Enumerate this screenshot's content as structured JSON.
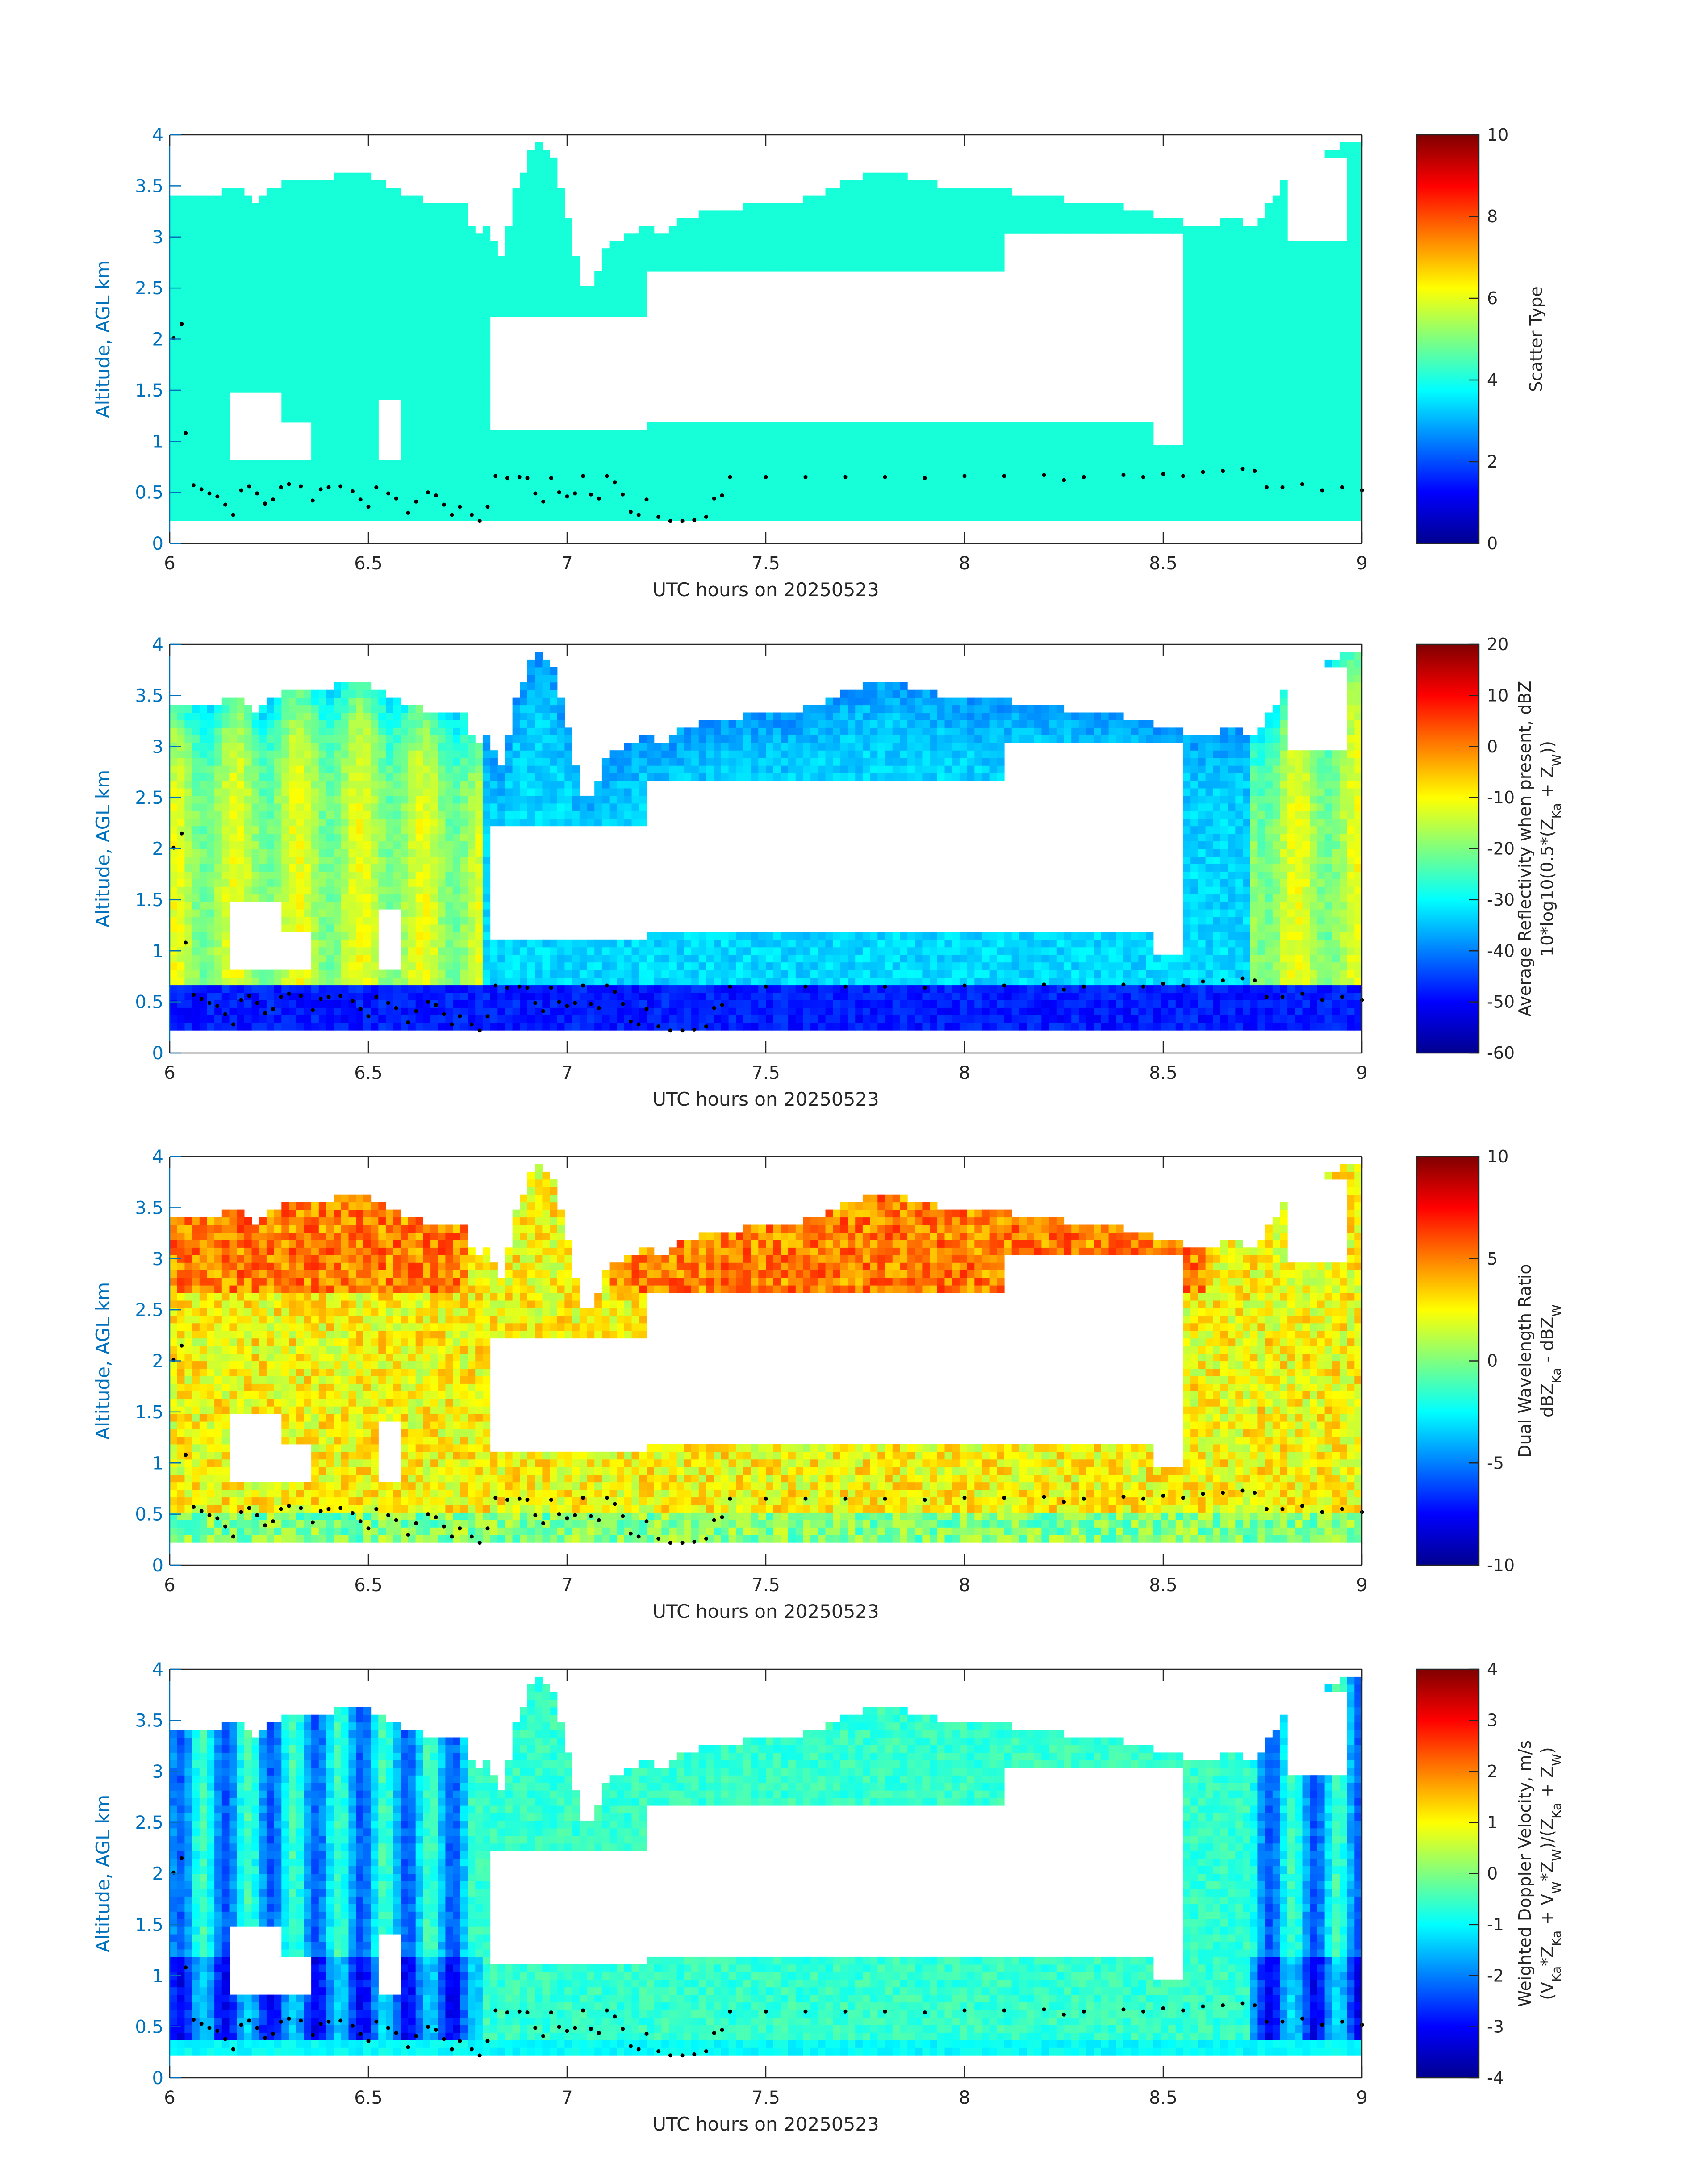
{
  "chart_data": [
    {
      "type": "heatmap",
      "xlabel": "UTC hours on 20250523",
      "ylabel": "Altitude, AGL km",
      "xlim": [
        6,
        9
      ],
      "ylim": [
        0,
        4
      ],
      "xticks": [
        "6",
        "6.5",
        "7",
        "7.5",
        "8",
        "8.5",
        "9"
      ],
      "yticks": [
        "0",
        "0.5",
        "1",
        "1.5",
        "2",
        "2.5",
        "3",
        "3.5",
        "4"
      ],
      "colorbar": {
        "label_lines": [
          "Scatter Type"
        ],
        "range": [
          0,
          10
        ],
        "ticks": [
          "0",
          "2",
          "4",
          "6",
          "8",
          "10"
        ]
      },
      "field": "scatter"
    },
    {
      "type": "heatmap",
      "xlabel": "UTC hours on 20250523",
      "ylabel": "Altitude, AGL km",
      "xlim": [
        6,
        9
      ],
      "ylim": [
        0,
        4
      ],
      "xticks": [
        "6",
        "6.5",
        "7",
        "7.5",
        "8",
        "8.5",
        "9"
      ],
      "yticks": [
        "0",
        "0.5",
        "1",
        "1.5",
        "2",
        "2.5",
        "3",
        "3.5",
        "4"
      ],
      "colorbar": {
        "label_lines": [
          "Average Reflectivity when present, dBZ",
          "10*log10(0.5*(Z_Ka + Z_W))"
        ],
        "range": [
          -60,
          20
        ],
        "ticks": [
          "-60",
          "-50",
          "-40",
          "-30",
          "-20",
          "-10",
          "0",
          "10",
          "20"
        ]
      },
      "field": "reflectivity"
    },
    {
      "type": "heatmap",
      "xlabel": "UTC hours on 20250523",
      "ylabel": "Altitude, AGL km",
      "xlim": [
        6,
        9
      ],
      "ylim": [
        0,
        4
      ],
      "xticks": [
        "6",
        "6.5",
        "7",
        "7.5",
        "8",
        "8.5",
        "9"
      ],
      "yticks": [
        "0",
        "0.5",
        "1",
        "1.5",
        "2",
        "2.5",
        "3",
        "3.5",
        "4"
      ],
      "colorbar": {
        "label_lines": [
          "Dual Wavelength Ratio",
          "dBZ_Ka - dBZ_W"
        ],
        "range": [
          -10,
          10
        ],
        "ticks": [
          "-10",
          "-5",
          "0",
          "5",
          "10"
        ]
      },
      "field": "dwr"
    },
    {
      "type": "heatmap",
      "xlabel": "UTC hours on 20250523",
      "ylabel": "Altitude, AGL km",
      "xlim": [
        6,
        9
      ],
      "ylim": [
        0,
        4
      ],
      "xticks": [
        "6",
        "6.5",
        "7",
        "7.5",
        "8",
        "8.5",
        "9"
      ],
      "yticks": [
        "0",
        "0.5",
        "1",
        "1.5",
        "2",
        "2.5",
        "3",
        "3.5",
        "4"
      ],
      "colorbar": {
        "label_lines": [
          "Weighted Doppler Velocity, m/s",
          "(V_Ka*Z_Ka + V_W*Z_W)/(Z_Ka + Z_W)"
        ],
        "range": [
          -4,
          4
        ],
        "ticks": [
          "-4",
          "-3",
          "-2",
          "-1",
          "0",
          "1",
          "2",
          "3",
          "4"
        ]
      },
      "field": "velocity"
    }
  ],
  "cloud_mask": {
    "time_range": [
      6,
      9
    ],
    "top_km": [
      [
        6.0,
        3.4
      ],
      [
        6.1,
        3.4
      ],
      [
        6.18,
        3.5
      ],
      [
        6.22,
        3.3
      ],
      [
        6.26,
        3.5
      ],
      [
        6.3,
        3.55
      ],
      [
        6.35,
        3.55
      ],
      [
        6.42,
        3.6
      ],
      [
        6.5,
        3.6
      ],
      [
        6.55,
        3.5
      ],
      [
        6.62,
        3.4
      ],
      [
        6.7,
        3.3
      ],
      [
        6.74,
        3.35
      ],
      [
        6.77,
        3.0
      ],
      [
        6.8,
        3.1
      ],
      [
        6.84,
        2.8
      ],
      [
        6.87,
        3.5
      ],
      [
        6.92,
        3.9
      ],
      [
        6.96,
        3.85
      ],
      [
        7.0,
        3.2
      ],
      [
        7.05,
        2.4
      ],
      [
        7.1,
        2.9
      ],
      [
        7.15,
        3.0
      ],
      [
        7.2,
        3.1
      ],
      [
        7.25,
        3.05
      ],
      [
        7.3,
        3.2
      ],
      [
        7.35,
        3.25
      ],
      [
        7.4,
        3.25
      ],
      [
        7.45,
        3.3
      ],
      [
        7.5,
        3.35
      ],
      [
        7.55,
        3.3
      ],
      [
        7.62,
        3.4
      ],
      [
        7.7,
        3.55
      ],
      [
        7.8,
        3.65
      ],
      [
        7.9,
        3.55
      ],
      [
        8.0,
        3.45
      ],
      [
        8.1,
        3.45
      ],
      [
        8.2,
        3.4
      ],
      [
        8.3,
        3.35
      ],
      [
        8.4,
        3.3
      ],
      [
        8.5,
        3.2
      ],
      [
        8.6,
        3.1
      ],
      [
        8.68,
        3.2
      ],
      [
        8.72,
        3.05
      ],
      [
        8.78,
        3.4
      ],
      [
        8.84,
        3.8
      ],
      [
        8.9,
        3.8
      ],
      [
        8.95,
        3.9
      ],
      [
        9.0,
        3.9
      ]
    ],
    "base_km": [
      [
        6.0,
        0.2
      ],
      [
        6.5,
        0.2
      ],
      [
        7.0,
        0.2
      ],
      [
        7.5,
        0.2
      ],
      [
        8.0,
        0.2
      ],
      [
        8.5,
        0.2
      ],
      [
        9.0,
        0.2
      ]
    ],
    "gaps": [
      {
        "t0": 6.8,
        "t1": 7.2,
        "z0": 1.1,
        "z1": 2.2
      },
      {
        "t0": 7.2,
        "t1": 8.55,
        "z0": 1.15,
        "z1": 2.7
      },
      {
        "t0": 8.1,
        "t1": 8.55,
        "z0": 2.7,
        "z1": 3.05
      },
      {
        "t0": 6.15,
        "t1": 6.28,
        "z0": 0.8,
        "z1": 1.5
      },
      {
        "t0": 6.29,
        "t1": 6.36,
        "z0": 0.85,
        "z1": 1.2
      },
      {
        "t0": 6.52,
        "t1": 6.58,
        "z0": 0.8,
        "z1": 1.4
      },
      {
        "t0": 8.48,
        "t1": 8.55,
        "z0": 0.95,
        "z1": 1.4
      },
      {
        "t0": 8.82,
        "t1": 8.96,
        "z0": 3.0,
        "z1": 3.8
      }
    ]
  },
  "boundary_layer_dots": {
    "points": [
      [
        6.01,
        2.01
      ],
      [
        6.03,
        2.15
      ],
      [
        6.04,
        1.08
      ],
      [
        6.06,
        0.57
      ],
      [
        6.08,
        0.53
      ],
      [
        6.1,
        0.49
      ],
      [
        6.12,
        0.46
      ],
      [
        6.14,
        0.38
      ],
      [
        6.16,
        0.28
      ],
      [
        6.18,
        0.52
      ],
      [
        6.2,
        0.56
      ],
      [
        6.22,
        0.49
      ],
      [
        6.24,
        0.39
      ],
      [
        6.26,
        0.43
      ],
      [
        6.28,
        0.55
      ],
      [
        6.3,
        0.58
      ],
      [
        6.33,
        0.56
      ],
      [
        6.36,
        0.42
      ],
      [
        6.38,
        0.53
      ],
      [
        6.4,
        0.55
      ],
      [
        6.43,
        0.56
      ],
      [
        6.46,
        0.51
      ],
      [
        6.48,
        0.43
      ],
      [
        6.5,
        0.36
      ],
      [
        6.52,
        0.55
      ],
      [
        6.55,
        0.49
      ],
      [
        6.57,
        0.44
      ],
      [
        6.6,
        0.3
      ],
      [
        6.62,
        0.41
      ],
      [
        6.65,
        0.5
      ],
      [
        6.67,
        0.47
      ],
      [
        6.69,
        0.38
      ],
      [
        6.71,
        0.28
      ],
      [
        6.73,
        0.36
      ],
      [
        6.76,
        0.28
      ],
      [
        6.78,
        0.22
      ],
      [
        6.8,
        0.36
      ],
      [
        6.82,
        0.66
      ],
      [
        6.85,
        0.64
      ],
      [
        6.88,
        0.65
      ],
      [
        6.9,
        0.64
      ],
      [
        6.92,
        0.49
      ],
      [
        6.94,
        0.41
      ],
      [
        6.96,
        0.64
      ],
      [
        6.98,
        0.5
      ],
      [
        7.0,
        0.46
      ],
      [
        7.02,
        0.49
      ],
      [
        7.04,
        0.66
      ],
      [
        7.06,
        0.48
      ],
      [
        7.08,
        0.44
      ],
      [
        7.1,
        0.66
      ],
      [
        7.12,
        0.6
      ],
      [
        7.14,
        0.48
      ],
      [
        7.16,
        0.31
      ],
      [
        7.18,
        0.28
      ],
      [
        7.2,
        0.43
      ],
      [
        7.23,
        0.26
      ],
      [
        7.26,
        0.22
      ],
      [
        7.29,
        0.22
      ],
      [
        7.32,
        0.23
      ],
      [
        7.35,
        0.26
      ],
      [
        7.37,
        0.44
      ],
      [
        7.39,
        0.47
      ],
      [
        7.41,
        0.65
      ],
      [
        7.5,
        0.65
      ],
      [
        7.6,
        0.65
      ],
      [
        7.7,
        0.65
      ],
      [
        7.8,
        0.65
      ],
      [
        7.9,
        0.64
      ],
      [
        8.0,
        0.66
      ],
      [
        8.1,
        0.66
      ],
      [
        8.2,
        0.67
      ],
      [
        8.25,
        0.62
      ],
      [
        8.3,
        0.65
      ],
      [
        8.4,
        0.67
      ],
      [
        8.45,
        0.65
      ],
      [
        8.5,
        0.68
      ],
      [
        8.55,
        0.66
      ],
      [
        8.6,
        0.7
      ],
      [
        8.65,
        0.71
      ],
      [
        8.7,
        0.73
      ],
      [
        8.73,
        0.71
      ],
      [
        8.76,
        0.55
      ],
      [
        8.8,
        0.55
      ],
      [
        8.85,
        0.58
      ],
      [
        8.9,
        0.52
      ],
      [
        8.95,
        0.55
      ],
      [
        9.0,
        0.52
      ]
    ]
  }
}
